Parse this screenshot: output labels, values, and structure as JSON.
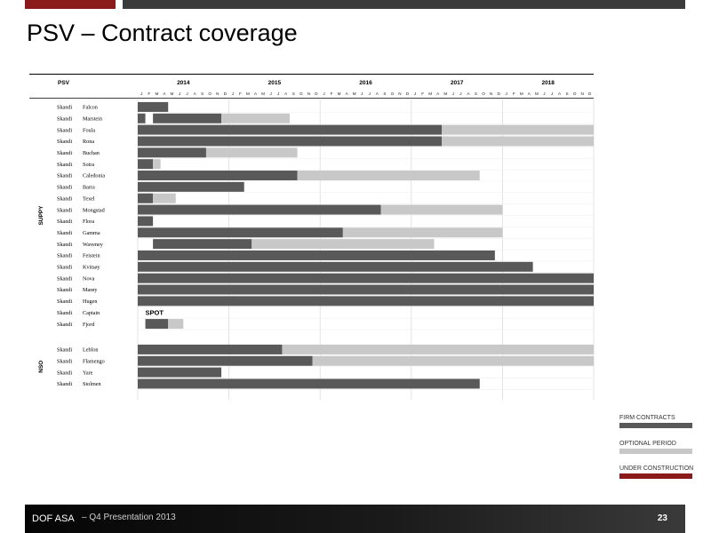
{
  "page": {
    "title": "PSV – Contract coverage",
    "footer": {
      "company": "DOF ASA",
      "presentation": "– Q4 Presentation 2013",
      "page_number": "23"
    }
  },
  "legend": [
    {
      "label": "FIRM CONTRACTS",
      "color": "#595959"
    },
    {
      "label": "OPTIONAL PERIOD",
      "color": "#c8c8c8"
    },
    {
      "label": "UNDER CONSTRUCTION",
      "color": "#8b1a1a"
    }
  ],
  "chart_data": {
    "type": "gantt",
    "header": {
      "category_label": "PSV"
    },
    "years": [
      "2014",
      "2015",
      "2016",
      "2017",
      "2018"
    ],
    "month_labels": [
      "J",
      "F",
      "M",
      "A",
      "M",
      "J",
      "J",
      "A",
      "S",
      "O",
      "N",
      "D"
    ],
    "x_range": [
      "2014-01",
      "2018-12"
    ],
    "colors": {
      "firm": "#595959",
      "option": "#c8c8c8"
    },
    "groups": [
      {
        "label": "SUPPY",
        "vessels": [
          {
            "name": [
              "Skandi",
              "Falcon"
            ],
            "segments": [
              {
                "type": "firm",
                "start": 0,
                "end": 4
              }
            ]
          },
          {
            "name": [
              "Skandi",
              "Marstein"
            ],
            "segments": [
              {
                "type": "firm",
                "start": 0,
                "end": 1
              },
              {
                "type": "firm",
                "start": 2,
                "end": 11
              },
              {
                "type": "option",
                "start": 11,
                "end": 20
              }
            ]
          },
          {
            "name": [
              "Skandi",
              "Foula"
            ],
            "segments": [
              {
                "type": "firm",
                "start": 0,
                "end": 40
              },
              {
                "type": "option",
                "start": 40,
                "end": 60
              }
            ]
          },
          {
            "name": [
              "Skandi",
              "Rona"
            ],
            "segments": [
              {
                "type": "firm",
                "start": 0,
                "end": 40
              },
              {
                "type": "option",
                "start": 40,
                "end": 60
              }
            ]
          },
          {
            "name": [
              "Skandi",
              "Buchan"
            ],
            "segments": [
              {
                "type": "firm",
                "start": 0,
                "end": 9
              },
              {
                "type": "option",
                "start": 9,
                "end": 21
              }
            ]
          },
          {
            "name": [
              "Skandi",
              "Sotra"
            ],
            "segments": [
              {
                "type": "firm",
                "start": 0,
                "end": 2
              },
              {
                "type": "option",
                "start": 2,
                "end": 3
              }
            ]
          },
          {
            "name": [
              "Skandi",
              "Caledonia"
            ],
            "segments": [
              {
                "type": "firm",
                "start": 0,
                "end": 21
              },
              {
                "type": "option",
                "start": 21,
                "end": 45
              }
            ]
          },
          {
            "name": [
              "Skandi",
              "Barra"
            ],
            "segments": [
              {
                "type": "firm",
                "start": 0,
                "end": 14
              }
            ]
          },
          {
            "name": [
              "Skandi",
              "Texel"
            ],
            "segments": [
              {
                "type": "firm",
                "start": 0,
                "end": 2
              },
              {
                "type": "option",
                "start": 2,
                "end": 5
              }
            ]
          },
          {
            "name": [
              "Skandi",
              "Mongstad"
            ],
            "segments": [
              {
                "type": "firm",
                "start": 0,
                "end": 32
              },
              {
                "type": "option",
                "start": 32,
                "end": 48
              }
            ]
          },
          {
            "name": [
              "Skandi",
              "Flora"
            ],
            "segments": [
              {
                "type": "firm",
                "start": 0,
                "end": 2
              }
            ]
          },
          {
            "name": [
              "Skandi",
              "Gamma"
            ],
            "segments": [
              {
                "type": "firm",
                "start": 0,
                "end": 27
              },
              {
                "type": "option",
                "start": 27,
                "end": 48
              }
            ]
          },
          {
            "name": [
              "Skandi",
              "Waveney"
            ],
            "segments": [
              {
                "type": "firm",
                "start": 2,
                "end": 15
              },
              {
                "type": "option",
                "start": 15,
                "end": 39
              }
            ]
          },
          {
            "name": [
              "Skandi",
              "Feistein"
            ],
            "segments": [
              {
                "type": "firm",
                "start": 0,
                "end": 47
              }
            ]
          },
          {
            "name": [
              "Skandi",
              "Kvitsøy"
            ],
            "segments": [
              {
                "type": "firm",
                "start": 0,
                "end": 52
              }
            ]
          },
          {
            "name": [
              "Skandi",
              "Nova"
            ],
            "segments": [
              {
                "type": "firm",
                "start": 0,
                "end": 60
              }
            ]
          },
          {
            "name": [
              "Skandi",
              "Marøy"
            ],
            "segments": [
              {
                "type": "firm",
                "start": 0,
                "end": 60
              }
            ]
          },
          {
            "name": [
              "Skandi",
              "Hugen"
            ],
            "segments": [
              {
                "type": "firm",
                "start": 0,
                "end": 60
              }
            ]
          },
          {
            "name": [
              "Skandi",
              "Captain"
            ],
            "segments": [],
            "annotation": "SPOT"
          },
          {
            "name": [
              "Skandi",
              "Fjord"
            ],
            "segments": [
              {
                "type": "firm",
                "start": 1,
                "end": 4
              },
              {
                "type": "option",
                "start": 4,
                "end": 6
              }
            ]
          }
        ]
      },
      {
        "label": "NSO",
        "vessels": [
          {
            "name": [
              "Skandi",
              "Leblon"
            ],
            "segments": [
              {
                "type": "firm",
                "start": 0,
                "end": 19
              },
              {
                "type": "option",
                "start": 19,
                "end": 60
              }
            ]
          },
          {
            "name": [
              "Skandi",
              "Flamengo"
            ],
            "segments": [
              {
                "type": "firm",
                "start": 0,
                "end": 23
              },
              {
                "type": "option",
                "start": 23,
                "end": 60
              }
            ]
          },
          {
            "name": [
              "Skandi",
              "Yare"
            ],
            "segments": [
              {
                "type": "firm",
                "start": 0,
                "end": 11
              }
            ]
          },
          {
            "name": [
              "Skandi",
              "Stolmen"
            ],
            "segments": [
              {
                "type": "firm",
                "start": 0,
                "end": 45
              }
            ]
          }
        ]
      }
    ]
  }
}
